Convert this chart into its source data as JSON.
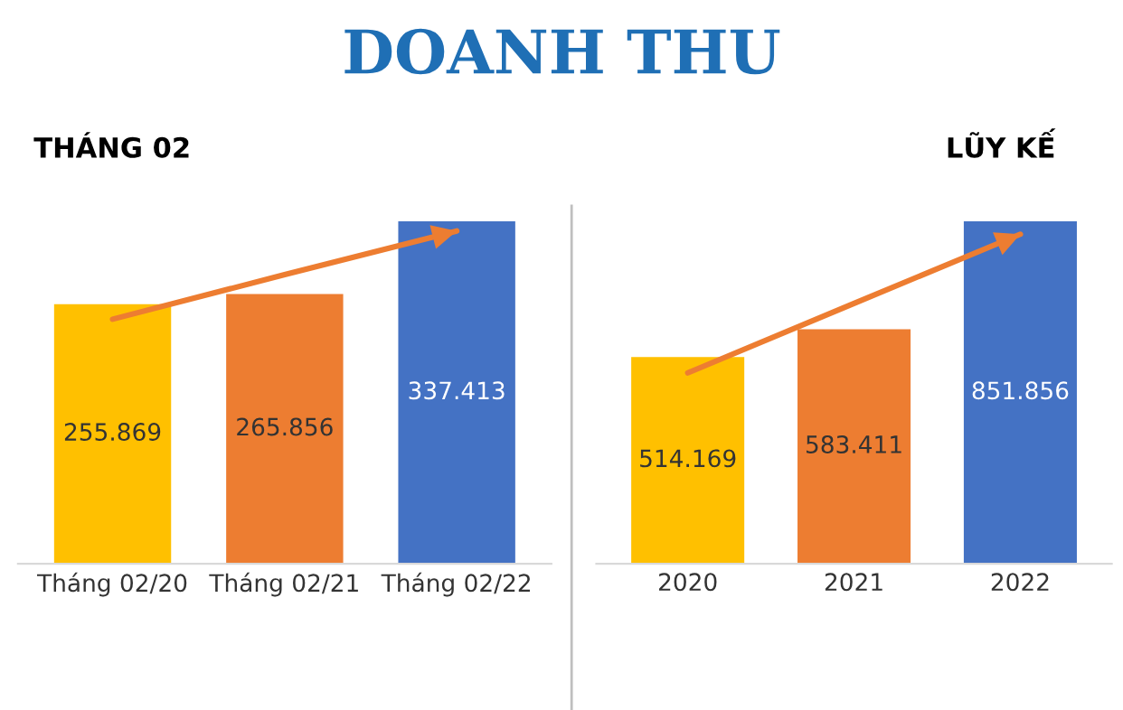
{
  "chart_data": [
    {
      "type": "bar",
      "title": "THÁNG 02",
      "annotations": [
        "DOANH THU"
      ],
      "categories": [
        "Tháng 02/20",
        "Tháng 02/21",
        "Tháng 02/22"
      ],
      "tick_labels": "x",
      "series": [
        {
          "values": [
            255.869,
            265.856,
            337.413
          ],
          "value_labels": [
            "255.869",
            "265.856",
            "337.413"
          ],
          "colors": [
            "#ffc000",
            "#ed7d31",
            "#4472c4"
          ]
        },
        {
          "type": "line",
          "values": [
            241,
            285,
            328
          ],
          "color": "#ed7d31"
        }
      ]
    },
    {
      "type": "bar",
      "title": "LŨY KẾ",
      "categories": [
        "2020",
        "2021",
        "2022"
      ],
      "tick_labels": "x",
      "series": [
        {
          "values": [
            514.169,
            583.411,
            851.856
          ],
          "value_labels": [
            "514.169",
            "583.411",
            "851.856"
          ],
          "colors": [
            "#ffc000",
            "#ed7d31",
            "#4472c4"
          ]
        },
        {
          "type": "line",
          "values": [
            475,
            648,
            820
          ],
          "color": "#ed7d31"
        }
      ]
    }
  ]
}
